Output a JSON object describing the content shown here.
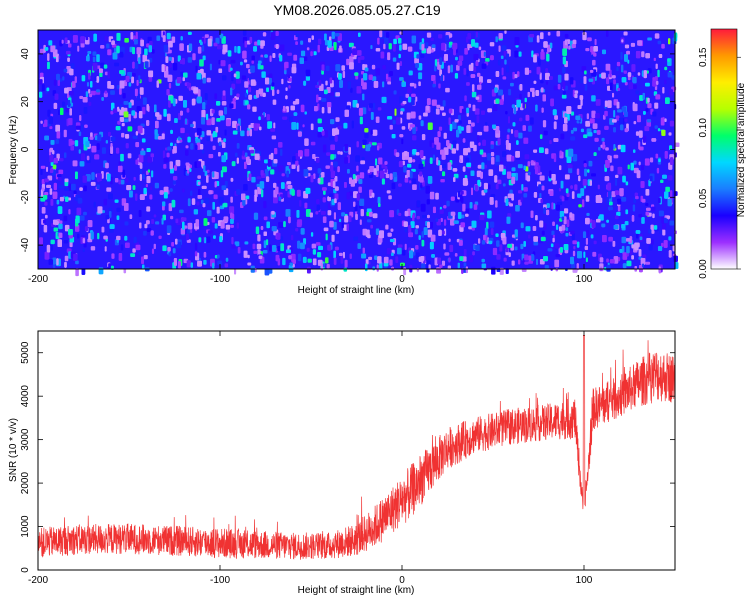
{
  "title": "YM08.2026.085.05.27.C19",
  "chart_data": [
    {
      "type": "heatmap",
      "xlabel": "Height of straight line (km)",
      "ylabel": "Frequency (Hz)",
      "xlim": [
        -200,
        150
      ],
      "ylim": [
        -50,
        50
      ],
      "x_ticks": [
        -200,
        -100,
        0,
        100
      ],
      "y_ticks": [
        -40,
        -20,
        0,
        20,
        40
      ],
      "colorbar": {
        "label": "Normalized spectral amplitude",
        "range": [
          0,
          0.17
        ],
        "ticks": [
          "0.00",
          "0.05",
          "0.10",
          "0.15"
        ],
        "colormap": [
          "#ffffff",
          "#9c2fff",
          "#1a00ff",
          "#1a7dff",
          "#00d8ff",
          "#00ff6a",
          "#b6ff00",
          "#ffee00",
          "#ff9900",
          "#ff1a3c"
        ]
      },
      "values_description_level": [
        0.01,
        0.045
      ]
    },
    {
      "type": "line",
      "xlabel": "Height of straight line (km)",
      "ylabel": "SNR (10 * v/v)",
      "xlim": [
        -200,
        150
      ],
      "ylim": [
        0,
        5500
      ],
      "x_ticks": [
        -200,
        -100,
        0,
        100
      ],
      "y_ticks": [
        0,
        1000,
        2000,
        3000,
        4000,
        5000
      ],
      "color": "#f03232",
      "envelope": {
        "x": [
          -200,
          -180,
          -150,
          -100,
          -60,
          -40,
          -25,
          -15,
          -5,
          5,
          15,
          25,
          40,
          60,
          80,
          95,
          100,
          105,
          120,
          130,
          140,
          150
        ],
        "y": [
          620,
          700,
          720,
          620,
          550,
          560,
          700,
          1000,
          1400,
          1800,
          2300,
          2800,
          3100,
          3300,
          3400,
          3500,
          1200,
          3700,
          4000,
          4300,
          4500,
          4400
        ],
        "spread": [
          500,
          500,
          500,
          500,
          450,
          450,
          550,
          700,
          800,
          900,
          800,
          700,
          600,
          600,
          600,
          700,
          300,
          700,
          700,
          800,
          900,
          800
        ]
      }
    }
  ]
}
